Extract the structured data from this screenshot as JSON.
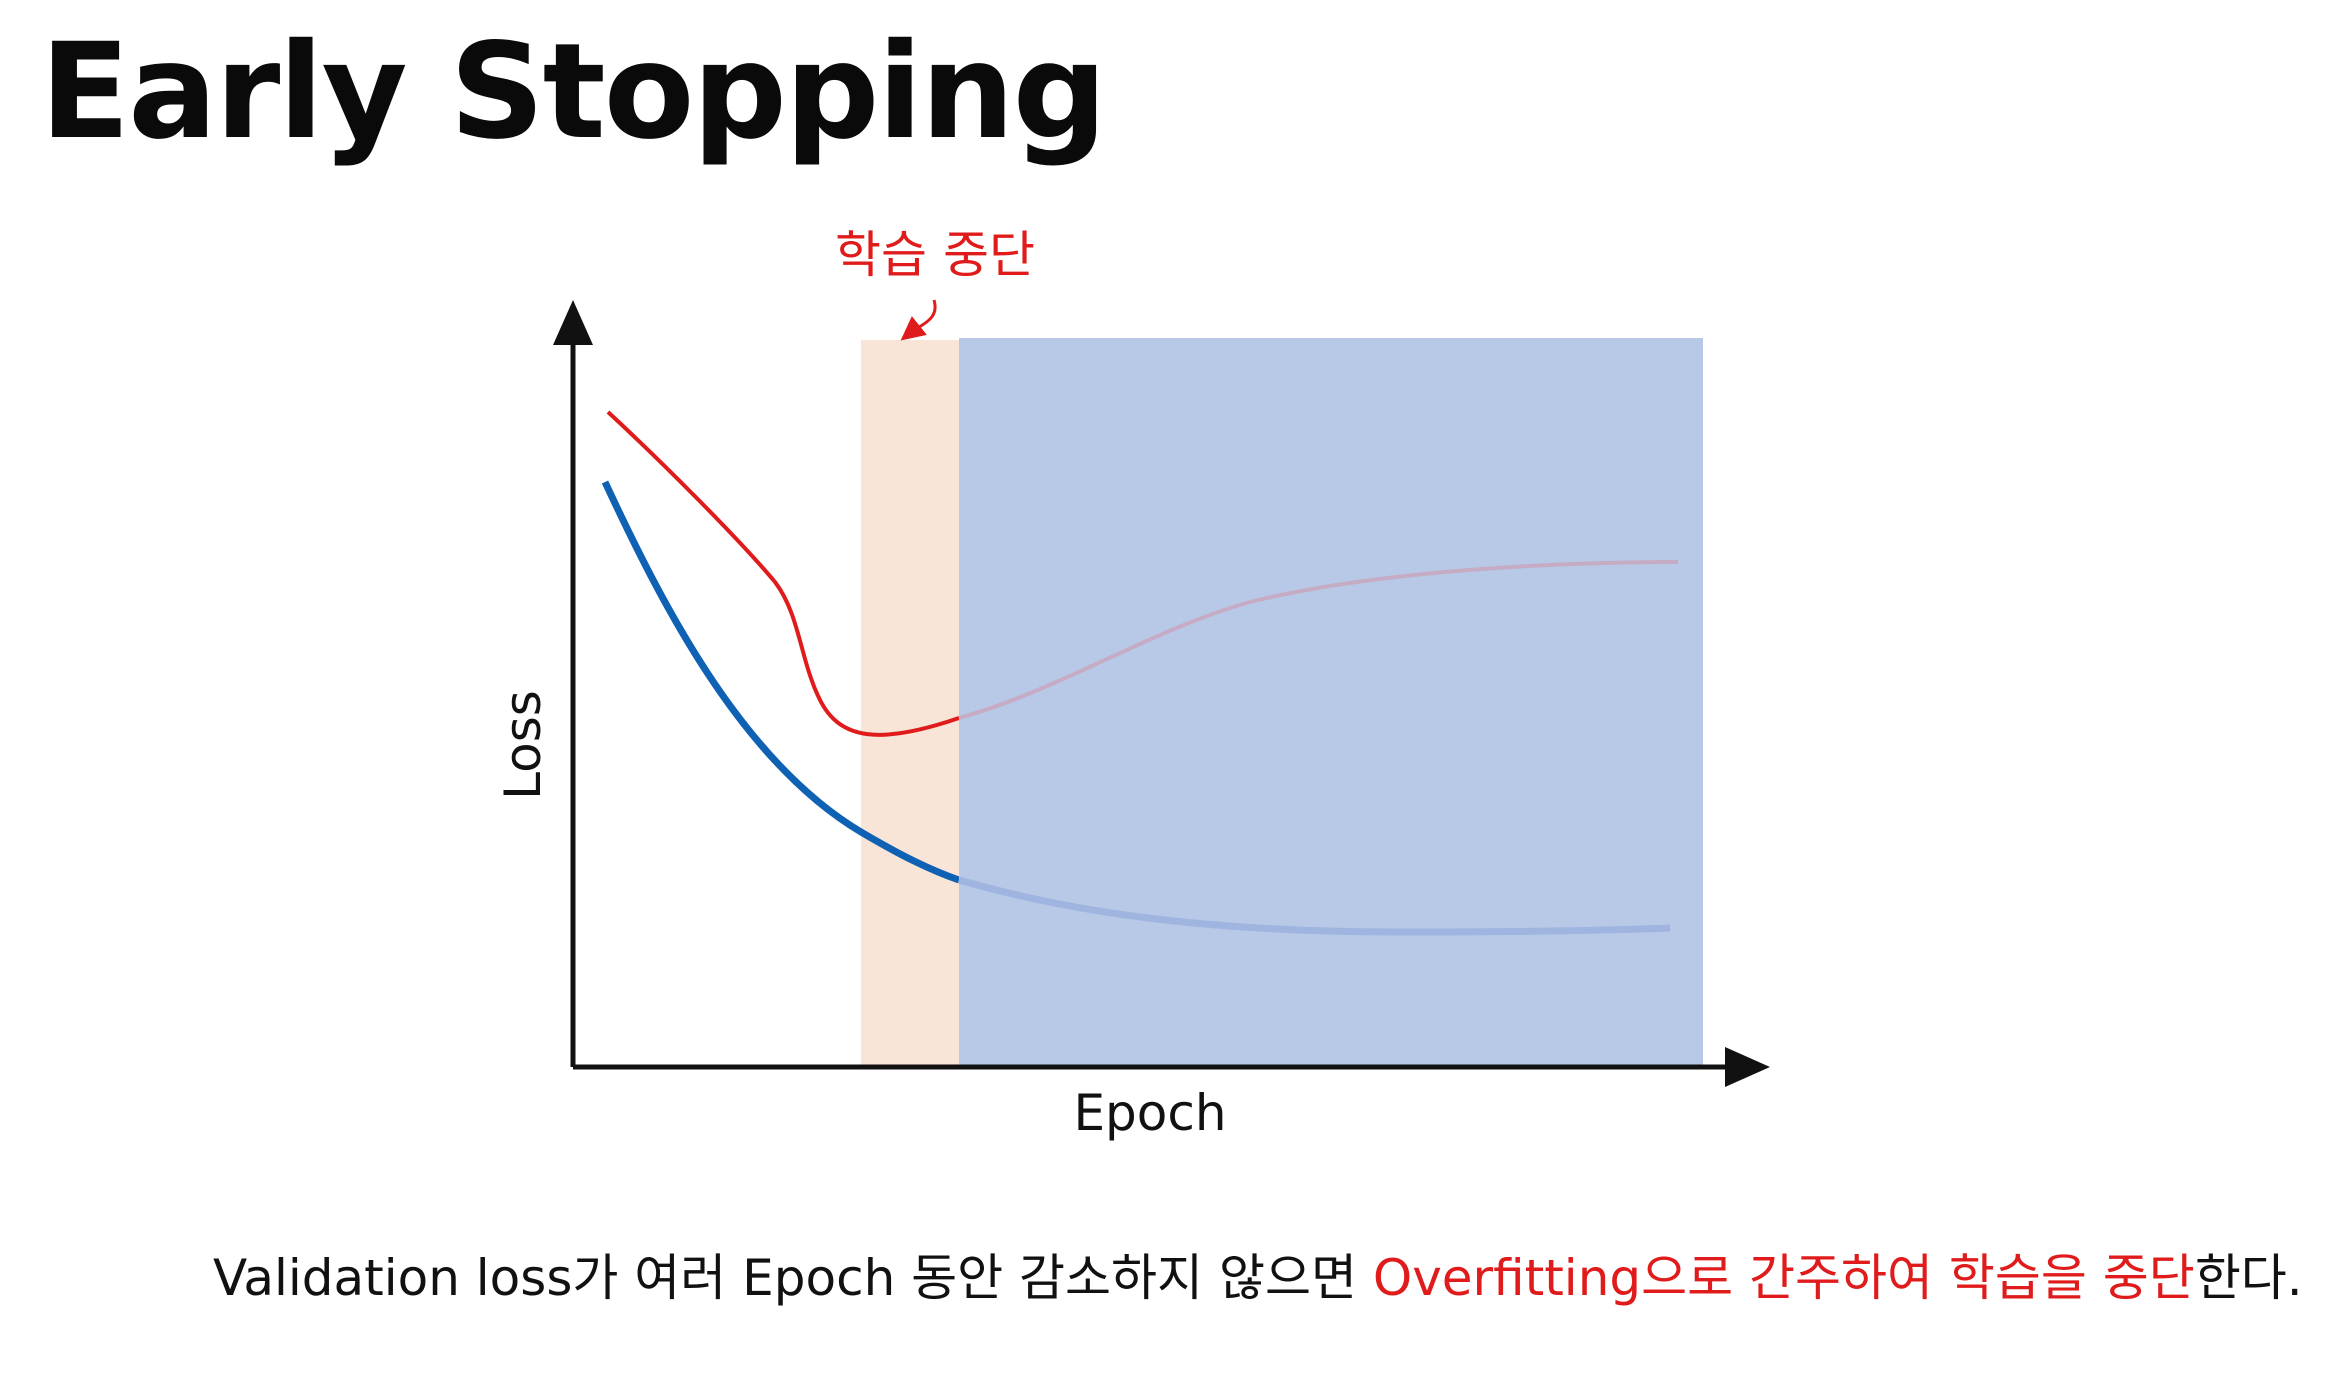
{
  "title": "Early Stopping",
  "annotation": {
    "stop_label": "학습 중단"
  },
  "axes": {
    "xlabel": "Epoch",
    "ylabel": "Loss"
  },
  "caption": {
    "part1": "Validation loss가 여러 Epoch 동안 감소하지 않으면 ",
    "part2": "Overfitting으로 간주하여 학습을 중단",
    "part3": "한다."
  },
  "colors": {
    "validation_curve": "#e01b1b",
    "training_curve": "#0f62b3",
    "stop_region": "#f9e5d8",
    "overfit_region": "#b8c9e8",
    "annotation": "#e01b1b",
    "axis": "#111111"
  }
}
